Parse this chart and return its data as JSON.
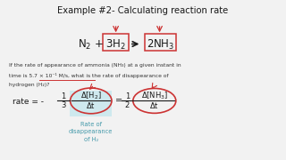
{
  "title": "Example #2- Calculating reaction rate",
  "bg_color": "#f2f2f2",
  "red_color": "#cc3333",
  "teal_color": "#4499aa",
  "teal_fill": "#c8e8ee",
  "black": "#1a1a1a",
  "dark": "#333333",
  "box_label": "Rate of\ndisappearance\nof H₂",
  "desc1": "If the rate of appearance of ammonia (NH₃) at a given instant in",
  "desc2": "time is 5.7 × 10⁻¹ M/s, what is the rate of disappearance of",
  "desc3": "hydrogen (H₂)?"
}
